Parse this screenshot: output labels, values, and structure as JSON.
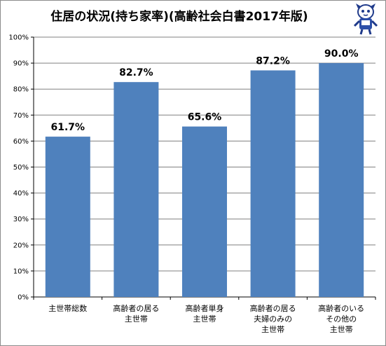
{
  "chart_data": {
    "type": "bar",
    "title": "住居の状況(持ち家率)(高齢社会白書2017年版)",
    "categories": [
      [
        "主世帯総数"
      ],
      [
        "高齢者の居る",
        "主世帯"
      ],
      [
        "高齢者単身",
        "主世帯"
      ],
      [
        "高齢者の居る",
        "夫婦のみの",
        "主世帯"
      ],
      [
        "高齢者のいる",
        "その他の",
        "主世帯"
      ]
    ],
    "values": [
      61.7,
      82.7,
      65.6,
      87.2,
      90.0
    ],
    "data_labels": [
      "61.7%",
      "82.7%",
      "65.6%",
      "87.2%",
      "90.0%"
    ],
    "y_ticks": [
      "0%",
      "10%",
      "20%",
      "30%",
      "40%",
      "50%",
      "60%",
      "70%",
      "80%",
      "90%",
      "100%"
    ],
    "ylim": [
      0,
      100
    ],
    "grid": true,
    "legend": "none",
    "bar_color": "#4f81bd",
    "grid_color": "#808080"
  },
  "mascot": {
    "icon": "mascot-character-icon"
  }
}
